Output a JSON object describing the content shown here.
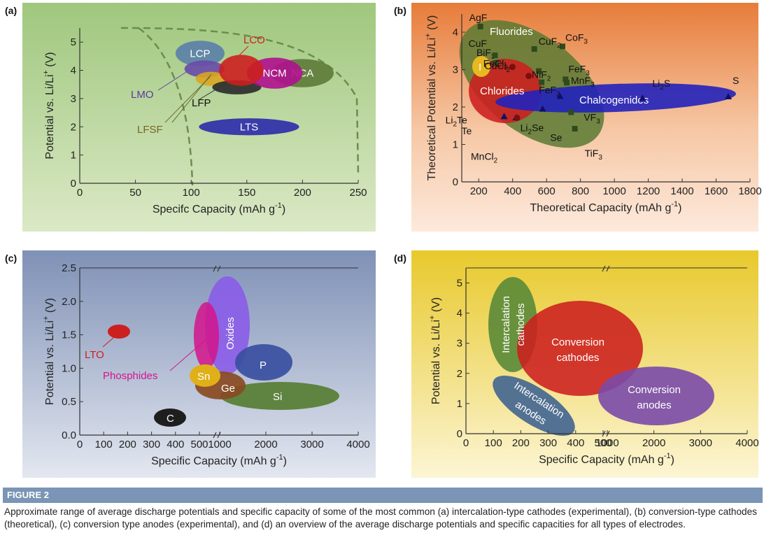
{
  "colors": {
    "ellipse_text": "#ffffff"
  },
  "chart_data": [
    {
      "type": "scatter",
      "panel_label": "(a)",
      "xlabel": "Specifc Capacity (mAh g",
      "xlabel_sup": "-1",
      "xlabel_end": ")",
      "ylabel": "Potential vs. Li/Li",
      "ylabel_sup": "+",
      "ylabel_end": " (V)",
      "xlim": [
        0,
        250
      ],
      "ylim": [
        0,
        5.5
      ],
      "xticks": [
        "0",
        "50",
        "100",
        "150",
        "200",
        "250"
      ],
      "yticks": [
        "0",
        "1",
        "2",
        "3",
        "4",
        "5"
      ],
      "regions": [
        {
          "name": "LCP",
          "cx": 108,
          "cy": 4.6,
          "rx": 22,
          "ry": 0.45,
          "color": "#5a7fa8",
          "label": "LCP",
          "label_in": true
        },
        {
          "name": "LMO",
          "cx": 112,
          "cy": 4.05,
          "rx": 18,
          "ry": 0.3,
          "color": "#6a4aa8",
          "label": "LMO",
          "label_in": false
        },
        {
          "name": "LFSF",
          "cx": 118,
          "cy": 3.7,
          "rx": 14,
          "ry": 0.25,
          "color": "#d9a520",
          "label": "LFSF",
          "label_in": false
        },
        {
          "name": "LFP",
          "cx": 141,
          "cy": 3.4,
          "rx": 22,
          "ry": 0.25,
          "color": "#2a2a2a",
          "label": "LFP",
          "label_in": false
        },
        {
          "name": "NCA",
          "cx": 200,
          "cy": 3.9,
          "rx": 28,
          "ry": 0.5,
          "color": "#5e7a38",
          "label": "NCA",
          "label_in": true
        },
        {
          "name": "NCM",
          "cx": 175,
          "cy": 3.9,
          "rx": 25,
          "ry": 0.55,
          "color": "#b0108e",
          "label": "NCM",
          "label_in": true
        },
        {
          "name": "LCO",
          "cx": 145,
          "cy": 4.0,
          "rx": 20,
          "ry": 0.55,
          "color": "#cc1f1f",
          "label": "LCO",
          "label_in": false
        },
        {
          "name": "LTS",
          "cx": 152,
          "cy": 2.0,
          "rx": 45,
          "ry": 0.3,
          "color": "#2a2aaa",
          "label": "LTS",
          "label_in": true
        }
      ]
    },
    {
      "type": "scatter",
      "panel_label": "(b)",
      "xlabel": "Theoretical Capacity (mAh g",
      "xlabel_sup": "-1",
      "xlabel_end": ")",
      "ylabel": "Theoretical Potential vs. Li/Li",
      "ylabel_sup": "+",
      "ylabel_end": " (V)",
      "xlim": [
        100,
        1800
      ],
      "ylim": [
        0,
        4.5
      ],
      "xticks": [
        "200",
        "400",
        "600",
        "800",
        "1000",
        "1200",
        "1400",
        "1600",
        "1800"
      ],
      "yticks": [
        "0",
        "1",
        "2",
        "3",
        "4"
      ],
      "regions": [
        {
          "name": "Fluorides",
          "label": "Fluorides",
          "color": "#5a7a32"
        },
        {
          "name": "Chlorides",
          "label": "Chlorides",
          "color": "#cc1f1f"
        },
        {
          "name": "Chalcogenides",
          "label": "Chalcogenides",
          "color": "#2222bb"
        },
        {
          "name": "I",
          "label": "I",
          "color": "#e8b820"
        }
      ],
      "points": [
        {
          "label": "AgF",
          "x": 210,
          "y": 4.15,
          "marker": "square"
        },
        {
          "label": "CoF3",
          "x": 694,
          "y": 3.62,
          "marker": "square"
        },
        {
          "label": "BiF3",
          "x": 302,
          "y": 3.18,
          "marker": "square"
        },
        {
          "label": "CuF2",
          "x": 528,
          "y": 3.55,
          "marker": "square"
        },
        {
          "label": "CuF",
          "x": 296,
          "y": 3.38,
          "marker": "square"
        },
        {
          "label": "CuCl2",
          "x": 399,
          "y": 3.07,
          "marker": "circle"
        },
        {
          "label": "FeCl3",
          "x": 495,
          "y": 2.83,
          "marker": "circle"
        },
        {
          "label": "FeF3",
          "x": 712,
          "y": 2.74,
          "marker": "square"
        },
        {
          "label": "NiF2",
          "x": 554,
          "y": 2.96,
          "marker": "square"
        },
        {
          "label": "MnF3",
          "x": 719,
          "y": 2.65,
          "marker": "square"
        },
        {
          "label": "FeF2",
          "x": 571,
          "y": 2.66,
          "marker": "square"
        },
        {
          "label": "Li2S",
          "x": 1166,
          "y": 2.24,
          "marker": "triangle"
        },
        {
          "label": "S",
          "x": 1672,
          "y": 2.28,
          "marker": "triangle"
        },
        {
          "label": "Li2Te",
          "x": 350,
          "y": 1.75,
          "marker": "triangle"
        },
        {
          "label": "Te",
          "x": 420,
          "y": 1.72,
          "marker": "triangle"
        },
        {
          "label": "Li2Se",
          "x": 577,
          "y": 1.95,
          "marker": "triangle"
        },
        {
          "label": "Se",
          "x": 679,
          "y": 2.29,
          "marker": "triangle"
        },
        {
          "label": "MnCl2",
          "x": 426,
          "y": 1.71,
          "marker": "circle"
        },
        {
          "label": "VF3",
          "x": 745,
          "y": 1.86,
          "marker": "square"
        },
        {
          "label": "TiF3",
          "x": 767,
          "y": 1.42,
          "marker": "square"
        }
      ]
    },
    {
      "type": "scatter",
      "panel_label": "(c)",
      "xlabel": "Specific Capacity (mAh g",
      "xlabel_sup": "-1",
      "xlabel_end": ")",
      "ylabel": "Potential vs. Li/Li",
      "ylabel_sup": "+",
      "ylabel_end": " (V)",
      "xlim": [
        0,
        4000
      ],
      "x_break": [
        500,
        1000
      ],
      "ylim": [
        0,
        2.5
      ],
      "xticks": [
        "0",
        "100",
        "200",
        "300",
        "400",
        "500",
        "1000",
        "2000",
        "3000",
        "4000"
      ],
      "yticks": [
        "0.0",
        "0.5",
        "1.0",
        "1.5",
        "2.0",
        "2.5"
      ],
      "regions": [
        {
          "name": "LTO",
          "label": "LTO",
          "color": "#cc1f1f"
        },
        {
          "name": "Oxides",
          "label": "Oxides",
          "color": "#8a5ce8"
        },
        {
          "name": "Phosphides",
          "label": "Phosphides",
          "color": "#d4148c"
        },
        {
          "name": "P",
          "label": "P",
          "color": "#3a4fa0"
        },
        {
          "name": "Sn",
          "label": "Sn",
          "color": "#e0b018"
        },
        {
          "name": "Ge",
          "label": "Ge",
          "color": "#8a4a22"
        },
        {
          "name": "Si",
          "label": "Si",
          "color": "#5a8038"
        },
        {
          "name": "C",
          "label": "C",
          "color": "#1e1e1e"
        }
      ]
    },
    {
      "type": "scatter",
      "panel_label": "(d)",
      "xlabel": "Specific Capacity (mAh g",
      "xlabel_sup": "-1",
      "xlabel_end": ")",
      "ylabel": "Potential vs. Li/Li",
      "ylabel_sup": "+",
      "ylabel_end": " (V)",
      "xlim": [
        0,
        4000
      ],
      "x_break": [
        500,
        1000
      ],
      "ylim": [
        0,
        5.5
      ],
      "xticks": [
        "0",
        "100",
        "200",
        "300",
        "400",
        "500",
        "1000",
        "2000",
        "3000",
        "4000"
      ],
      "yticks": [
        "0",
        "1",
        "2",
        "3",
        "4",
        "5"
      ],
      "regions": [
        {
          "name": "Intercalation cathodes",
          "label_lines": [
            "Intercalation",
            "cathodes"
          ],
          "color": "#5a8a38"
        },
        {
          "name": "Conversion cathodes",
          "label_lines": [
            "Conversion",
            "cathodes"
          ],
          "color": "#cc1f1f"
        },
        {
          "name": "Conversion anodes",
          "label_lines": [
            "Conversion",
            "anodes"
          ],
          "color": "#7a4aa8"
        },
        {
          "name": "Intercalation anodes",
          "label_lines": [
            "Intercalation",
            "anodes"
          ],
          "color": "#4a6a90"
        }
      ]
    }
  ],
  "caption": {
    "title": "FIGURE 2",
    "text": "Approximate range of average discharge potentials and specific capacity of some of the most common (a) intercalation-type cathodes (experimental), (b) conversion-type cathodes (theoretical), (c) conversion type anodes (experimental), and (d) an overview of the average discharge potentials and specific capacities for all types of electrodes."
  }
}
